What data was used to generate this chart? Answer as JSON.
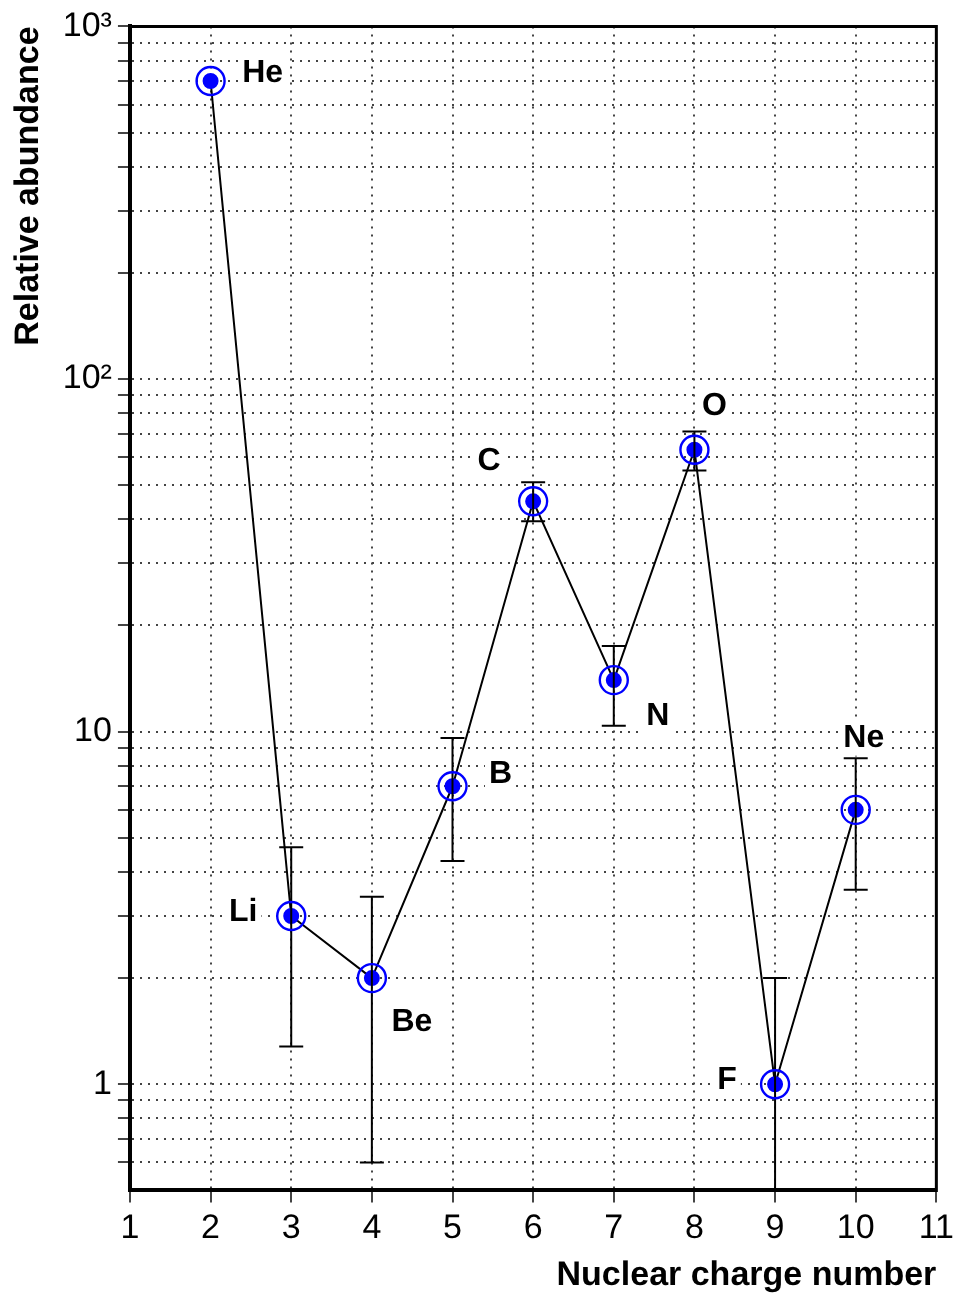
{
  "chart_data": {
    "type": "line",
    "xlabel": "Nuclear charge number",
    "ylabel": "Relative abundance",
    "x": [
      2,
      3,
      4,
      5,
      6,
      7,
      8,
      9,
      10
    ],
    "series": [
      {
        "color": "#0000ff",
        "values": [
          700,
          3.0,
          2.0,
          7.0,
          45,
          14,
          63,
          1.0,
          6.0
        ],
        "errors": [
          null,
          [
            1.28,
            4.7
          ],
          [
            0.6,
            3.4
          ],
          [
            4.3,
            9.6
          ],
          [
            39.5,
            51
          ],
          [
            10.4,
            17.5
          ],
          [
            55,
            71
          ],
          [
            0.5,
            2.0
          ],
          [
            3.56,
            8.4
          ]
        ]
      }
    ],
    "log": "y",
    "xlim": [
      1,
      11
    ],
    "xticks": [
      1,
      2,
      3,
      4,
      5,
      6,
      7,
      8,
      9,
      10,
      11
    ],
    "ylim": [
      0.5,
      1000
    ],
    "yticks": [
      {
        "value": 0.6,
        "label": null
      },
      {
        "value": 0.7,
        "label": null
      },
      {
        "value": 0.8,
        "label": null
      },
      {
        "value": 0.9,
        "label": null
      },
      1,
      {
        "value": 2,
        "label": null
      },
      {
        "value": 3,
        "label": null
      },
      {
        "value": 4,
        "label": null
      },
      {
        "value": 5,
        "label": null
      },
      {
        "value": 6,
        "label": null
      },
      {
        "value": 7,
        "label": null
      },
      {
        "value": 8,
        "label": null
      },
      {
        "value": 9,
        "label": null
      },
      10,
      {
        "value": 20,
        "label": null
      },
      {
        "value": 30,
        "label": null
      },
      {
        "value": 40,
        "label": null
      },
      {
        "value": 50,
        "label": null
      },
      {
        "value": 60,
        "label": null
      },
      {
        "value": 70,
        "label": null
      },
      {
        "value": 80,
        "label": null
      },
      {
        "value": 90,
        "label": null
      },
      {
        "value": 100,
        "label": "10²"
      },
      {
        "value": 200,
        "label": null
      },
      {
        "value": 300,
        "label": null
      },
      {
        "value": 400,
        "label": null
      },
      {
        "value": 500,
        "label": null
      },
      {
        "value": 600,
        "label": null
      },
      {
        "value": 700,
        "label": null
      },
      {
        "value": 800,
        "label": null
      },
      {
        "value": 900,
        "label": null
      },
      {
        "value": 1000,
        "label": "10³"
      }
    ],
    "grid": true,
    "marker": "circle",
    "line_style": "solid",
    "legend": false,
    "annotations": [
      {
        "text": "He",
        "x": 2,
        "y": 700
      },
      {
        "text": "Li",
        "x": 3,
        "y": 3.0
      },
      {
        "text": "Be",
        "x": 4,
        "y": 2.0
      },
      {
        "text": "B",
        "x": 5,
        "y": 7.0
      },
      {
        "text": "C",
        "x": 6,
        "y": 45
      },
      {
        "text": "N",
        "x": 7,
        "y": 14
      },
      {
        "text": "O",
        "x": 8,
        "y": 63
      },
      {
        "text": "F",
        "x": 9,
        "y": 1.0
      },
      {
        "text": "Ne",
        "x": 10,
        "y": 6.0
      }
    ]
  }
}
